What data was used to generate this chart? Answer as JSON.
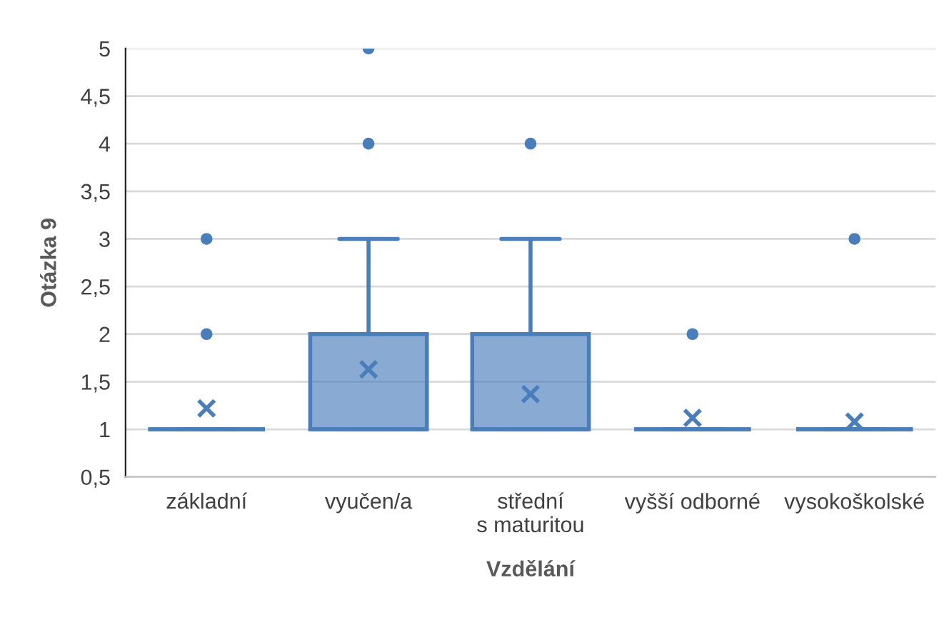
{
  "chart_data": {
    "type": "box",
    "xlabel": "Vzdělání",
    "ylabel": "Otázka 9",
    "color": "#4a7ebb",
    "categories": [
      "základní",
      "vyučen/a",
      "střední\ns maturitou",
      "vyšší odborné",
      "vysokoškolské"
    ],
    "boxes": [
      {
        "low": 1,
        "q1": 1,
        "median": 1,
        "q3": 1,
        "high": 1,
        "mean": 1.22,
        "outliers": [
          2,
          3
        ]
      },
      {
        "low": 1,
        "q1": 1,
        "median": 1,
        "q3": 2,
        "high": 3,
        "mean": 1.63,
        "outliers": [
          4,
          5
        ]
      },
      {
        "low": 1,
        "q1": 1,
        "median": 1,
        "q3": 2,
        "high": 3,
        "mean": 1.37,
        "outliers": [
          4
        ]
      },
      {
        "low": 1,
        "q1": 1,
        "median": 1,
        "q3": 1,
        "high": 1,
        "mean": 1.12,
        "outliers": [
          2
        ]
      },
      {
        "low": 1,
        "q1": 1,
        "median": 1,
        "q3": 1,
        "high": 1,
        "mean": 1.08,
        "outliers": [
          3
        ]
      }
    ],
    "ylim": [
      0.5,
      5
    ],
    "grid": "y",
    "yticks": [
      {
        "value": 0.5,
        "label": "0,5"
      },
      1,
      {
        "value": 1.5,
        "label": "1,5"
      },
      2,
      {
        "value": 2.5,
        "label": "2,5"
      },
      3,
      {
        "value": 3.5,
        "label": "3,5"
      },
      4,
      {
        "value": 4.5,
        "label": "4,5"
      },
      5
    ]
  }
}
